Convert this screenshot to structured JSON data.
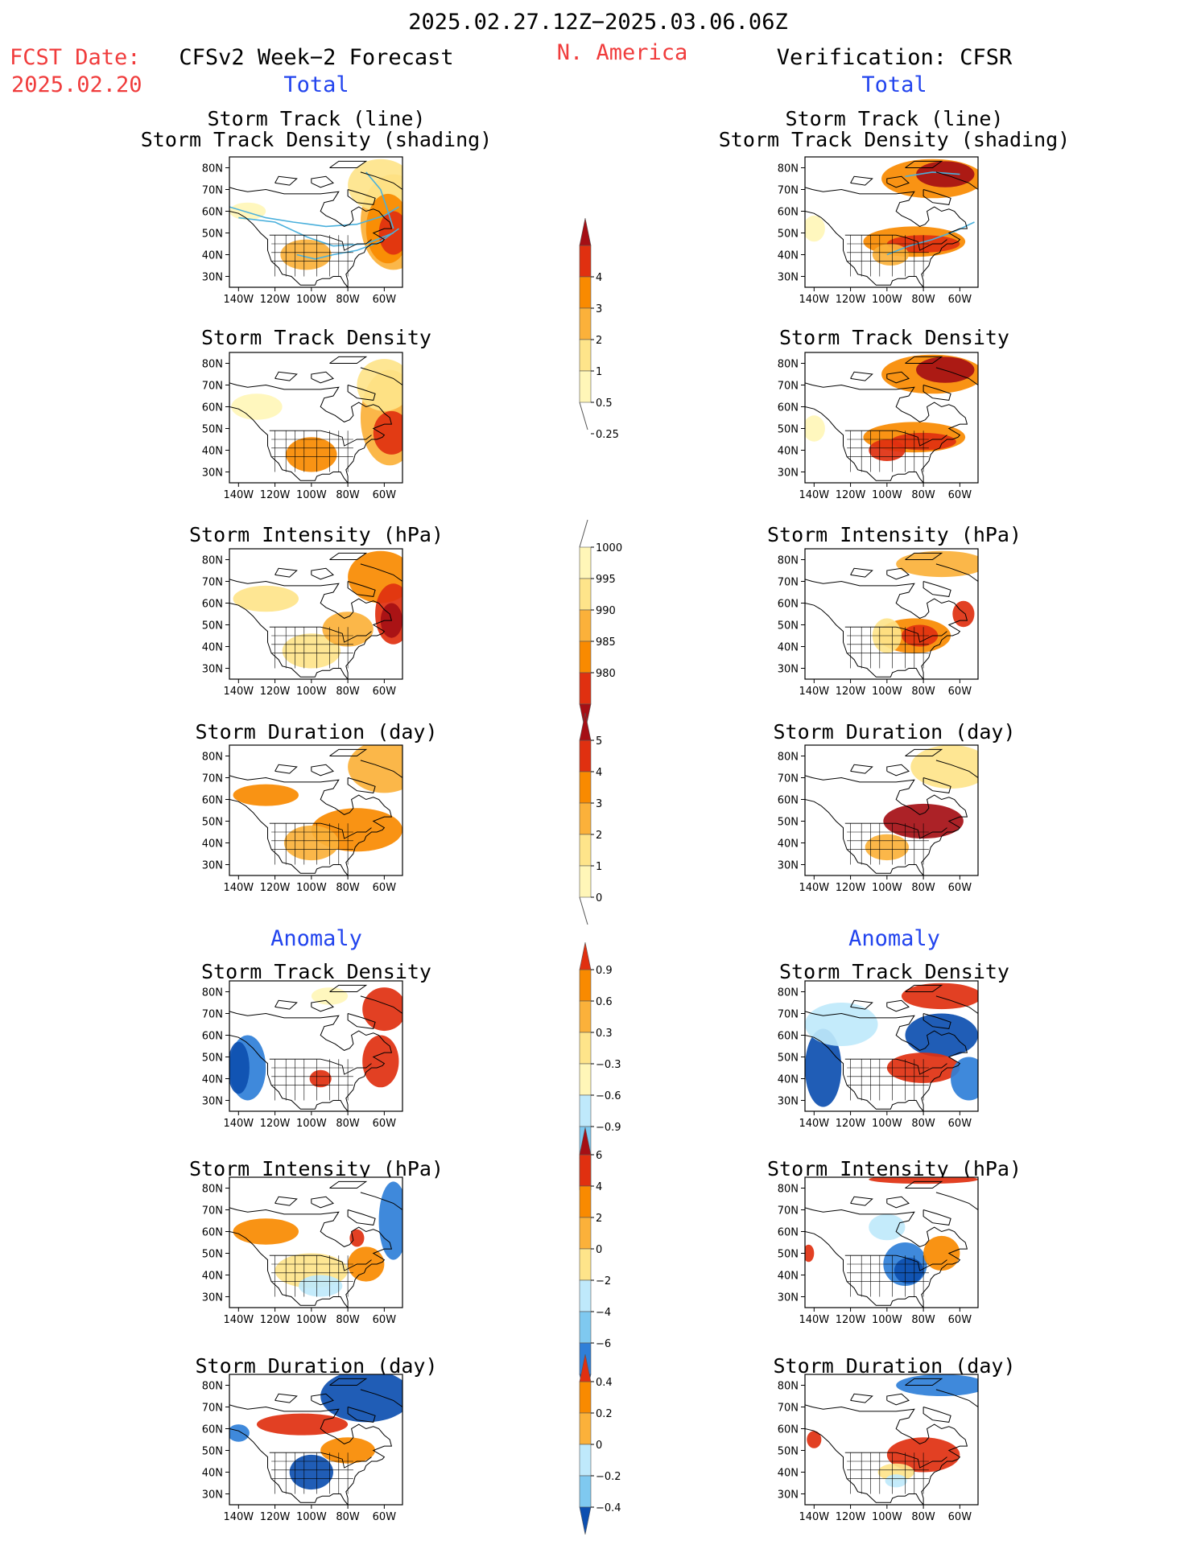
{
  "header": {
    "date_range": "2025.02.27.12Z−2025.03.06.06Z",
    "fcst_label": "FCST Date:",
    "fcst_date": "2025.02.20",
    "left_title": "CFSv2 Week−2 Forecast",
    "region": "N. America",
    "right_title": "Verification: CFSR",
    "total_label": "Total",
    "anomaly_label": "Anomaly"
  },
  "axes": {
    "lat_labels": [
      "80N",
      "70N",
      "60N",
      "50N",
      "40N",
      "30N"
    ],
    "lon_labels": [
      "140W",
      "120W",
      "100W",
      "80W",
      "60W"
    ]
  },
  "panel_titles": {
    "track_line_1": "Storm Track (line)",
    "track_line_2": "Storm Track Density (shading)",
    "density": "Storm Track Density",
    "intensity": "Storm Intensity (hPa)",
    "duration": "Storm Duration (day)"
  },
  "colorbars": {
    "density": [
      "4",
      "3",
      "2",
      "1",
      "0.5",
      "0.25"
    ],
    "intensity": [
      "1000",
      "995",
      "990",
      "985",
      "980"
    ],
    "duration": [
      "5",
      "4",
      "3",
      "2",
      "1",
      "0"
    ],
    "density_anom": [
      "0.9",
      "0.6",
      "0.3",
      "−0.3",
      "−0.6",
      "−0.9"
    ],
    "intensity_anom": [
      "6",
      "4",
      "2",
      "0",
      "−2",
      "−4",
      "−6"
    ],
    "duration_anom": [
      "0.4",
      "0.2",
      "0",
      "−0.2",
      "−0.4"
    ]
  },
  "colors": {
    "dark_red": "#a50f15",
    "red": "#e03010",
    "orange": "#f98a00",
    "light_orange": "#fbb13a",
    "yellow": "#fee48a",
    "pale_yellow": "#fff6b8",
    "pale_blue": "#bfe9fb",
    "light_blue": "#7fc9f0",
    "blue": "#2f7fd8",
    "dark_blue": "#0d4fb0",
    "track_line": "#4ab0dc"
  },
  "chart_data": {
    "type": "heatmap",
    "lat_range": [
      25,
      85
    ],
    "lon_range": [
      -145,
      -50
    ],
    "panels": [
      {
        "column": "CFSv2 Week−2 Forecast",
        "field": "Storm Track (line) / Storm Track Density (shading)",
        "section": "Total",
        "colorbar": "density"
      },
      {
        "column": "Verification: CFSR",
        "field": "Storm Track (line) / Storm Track Density (shading)",
        "section": "Total",
        "colorbar": "density"
      },
      {
        "column": "CFSv2 Week−2 Forecast",
        "field": "Storm Track Density",
        "section": "Total",
        "colorbar": "density"
      },
      {
        "column": "Verification: CFSR",
        "field": "Storm Track Density",
        "section": "Total",
        "colorbar": "density"
      },
      {
        "column": "CFSv2 Week−2 Forecast",
        "field": "Storm Intensity (hPa)",
        "section": "Total",
        "colorbar": "intensity"
      },
      {
        "column": "Verification: CFSR",
        "field": "Storm Intensity (hPa)",
        "section": "Total",
        "colorbar": "intensity"
      },
      {
        "column": "CFSv2 Week−2 Forecast",
        "field": "Storm Duration (day)",
        "section": "Total",
        "colorbar": "duration"
      },
      {
        "column": "Verification: CFSR",
        "field": "Storm Duration (day)",
        "section": "Total",
        "colorbar": "duration"
      },
      {
        "column": "CFSv2 Week−2 Forecast",
        "field": "Storm Track Density",
        "section": "Anomaly",
        "colorbar": "density_anom"
      },
      {
        "column": "Verification: CFSR",
        "field": "Storm Track Density",
        "section": "Anomaly",
        "colorbar": "density_anom"
      },
      {
        "column": "CFSv2 Week−2 Forecast",
        "field": "Storm Intensity (hPa)",
        "section": "Anomaly",
        "colorbar": "intensity_anom"
      },
      {
        "column": "Verification: CFSR",
        "field": "Storm Intensity (hPa)",
        "section": "Anomaly",
        "colorbar": "intensity_anom"
      },
      {
        "column": "CFSv2 Week−2 Forecast",
        "field": "Storm Duration (day)",
        "section": "Anomaly",
        "colorbar": "duration_anom"
      },
      {
        "column": "Verification: CFSR",
        "field": "Storm Duration (day)",
        "section": "Anomaly",
        "colorbar": "duration_anom"
      }
    ]
  }
}
